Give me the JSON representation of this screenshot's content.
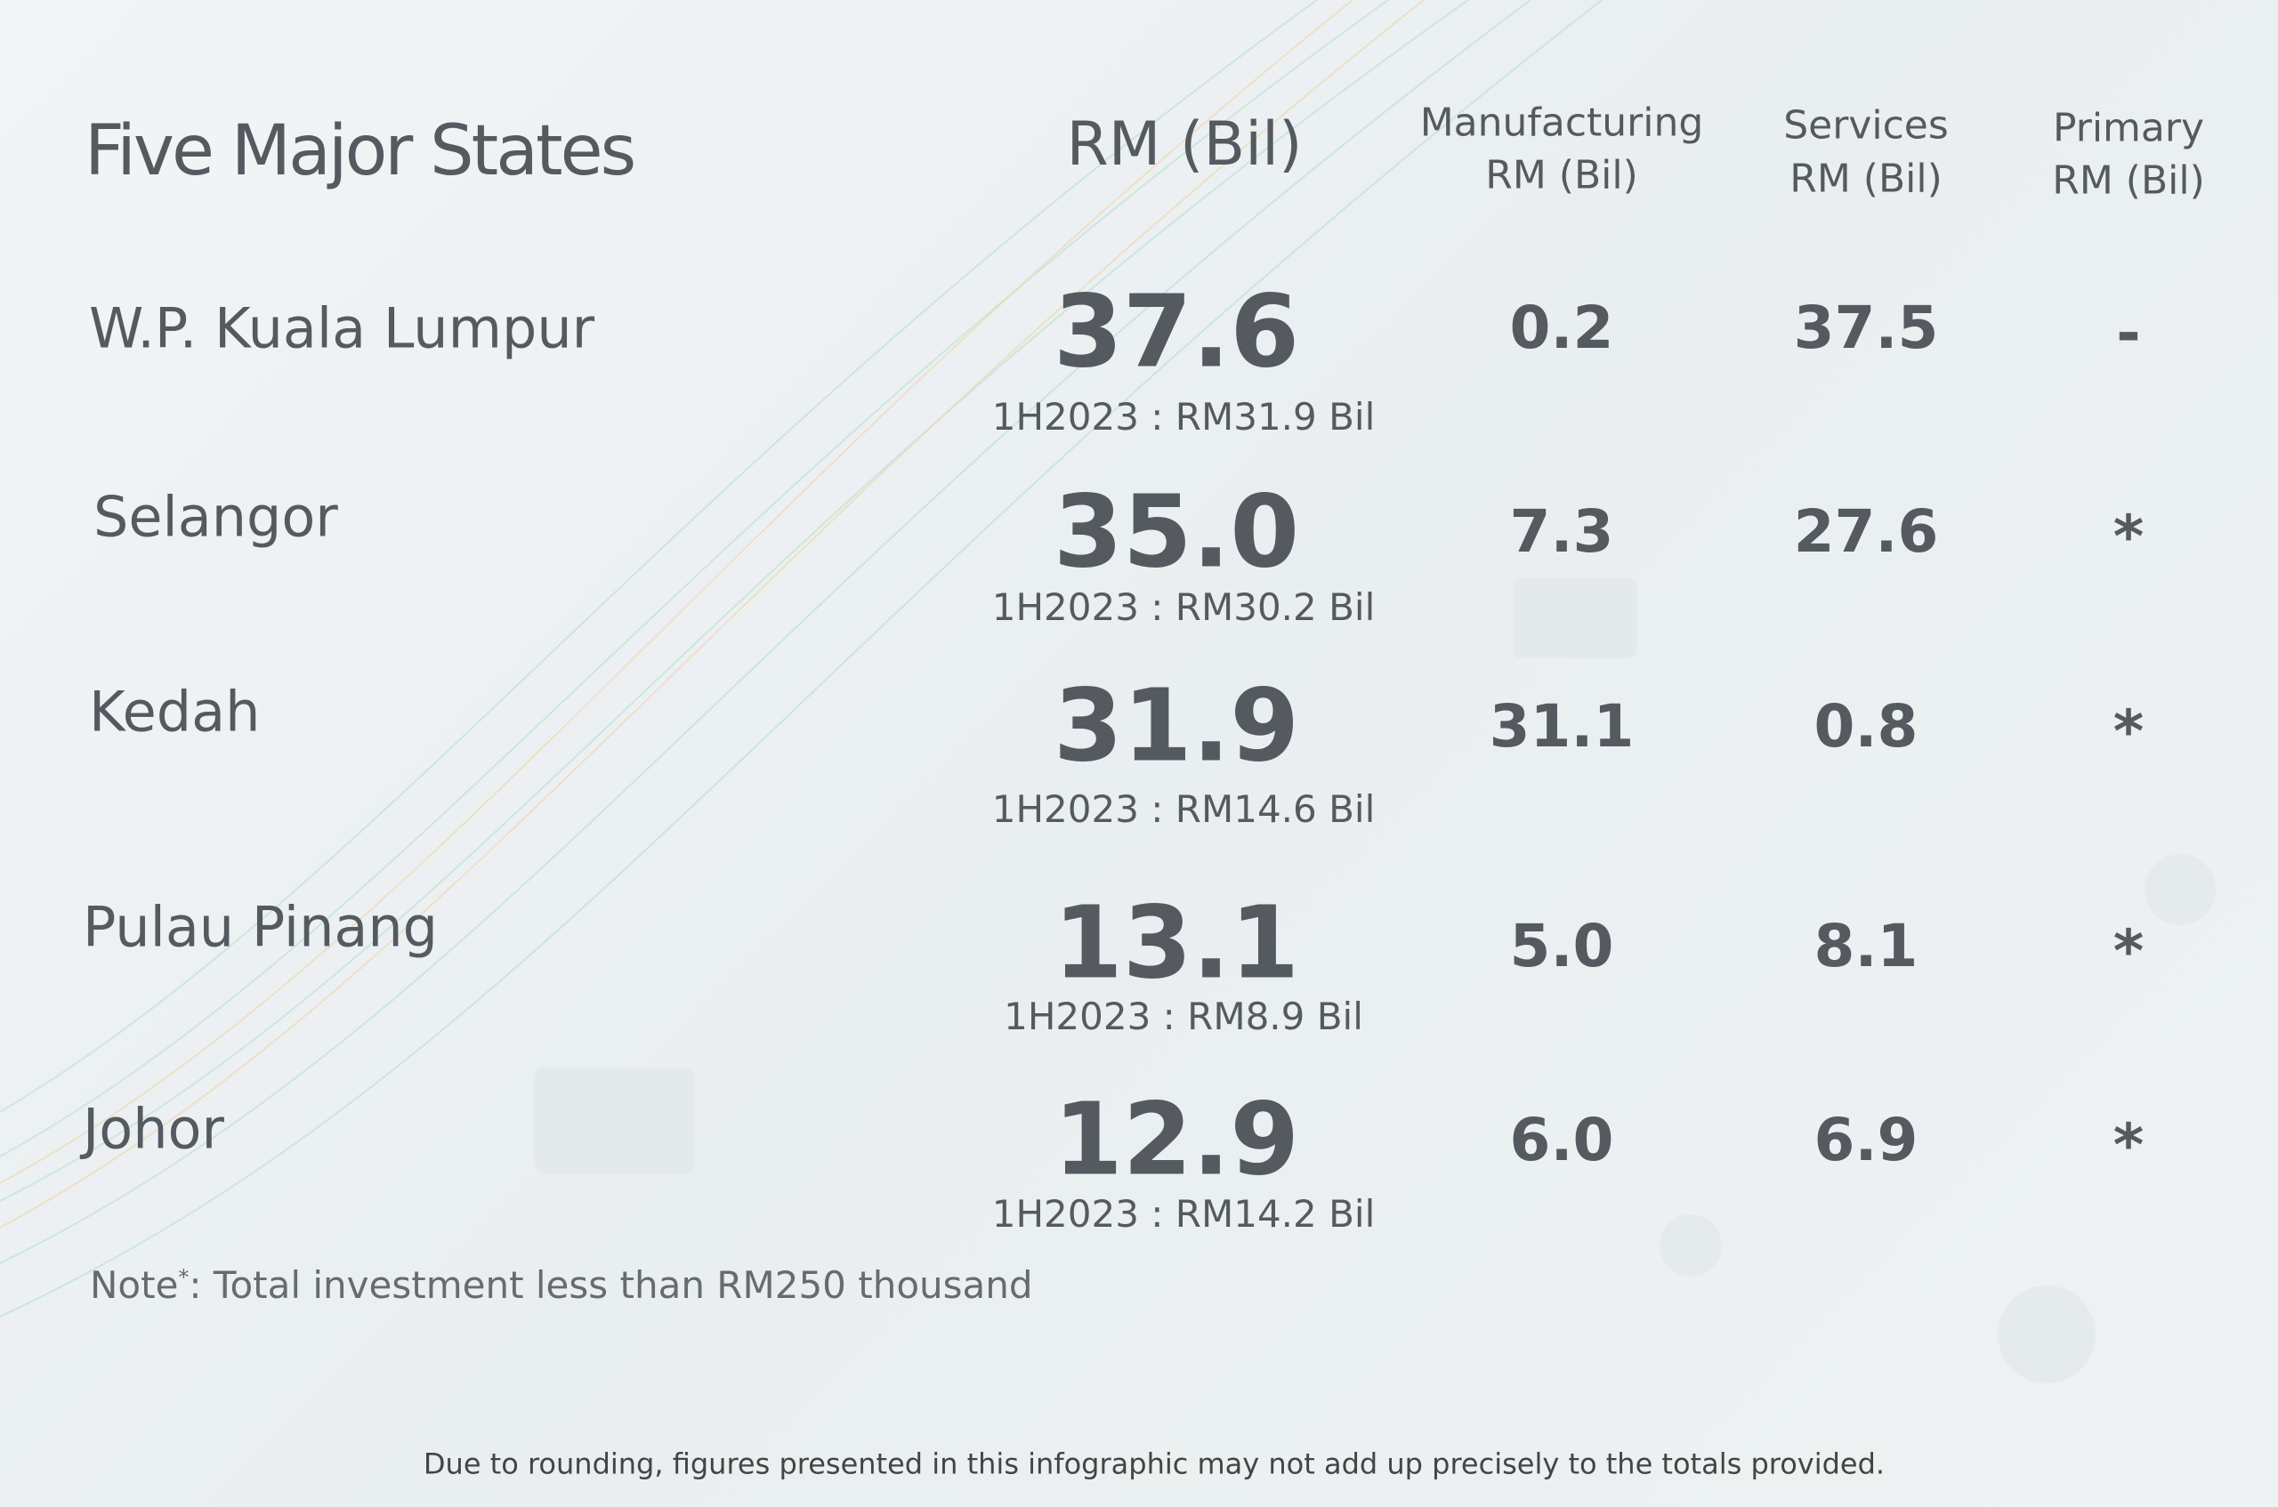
{
  "header": {
    "title": "Five Major States",
    "columns": [
      [
        "RM (Bil)"
      ],
      [
        "Manufacturing",
        "RM (Bil)"
      ],
      [
        "Services",
        "RM (Bil)"
      ],
      [
        "Primary",
        "RM (Bil)"
      ]
    ]
  },
  "table": {
    "rows": [
      {
        "state": "W.P. Kuala Lumpur",
        "total": "37.6",
        "previous": "1H2023 : RM31.9 Bil",
        "manufacturing": "0.2",
        "services": "37.5",
        "primary": "-"
      },
      {
        "state": "Selangor",
        "total": "35.0",
        "previous": "1H2023 : RM30.2 Bil",
        "manufacturing": "7.3",
        "services": "27.6",
        "primary": "*"
      },
      {
        "state": "Kedah",
        "total": "31.9",
        "previous": "1H2023 : RM14.6 Bil",
        "manufacturing": "31.1",
        "services": "0.8",
        "primary": "*"
      },
      {
        "state": "Pulau Pinang",
        "total": "13.1",
        "previous": "1H2023 : RM8.9 Bil",
        "manufacturing": "5.0",
        "services": "8.1",
        "primary": "*"
      },
      {
        "state": "Johor",
        "total": "12.9",
        "previous": "1H2023 : RM14.2 Bil",
        "manufacturing": "6.0",
        "services": "6.9",
        "primary": "*"
      }
    ]
  },
  "note": {
    "label": "Note",
    "mark": "*",
    "text": ": Total investment less than RM250 thousand"
  },
  "footer": {
    "text": "Due to rounding, figures presented in this infographic may not add up precisely to the totals provided."
  }
}
